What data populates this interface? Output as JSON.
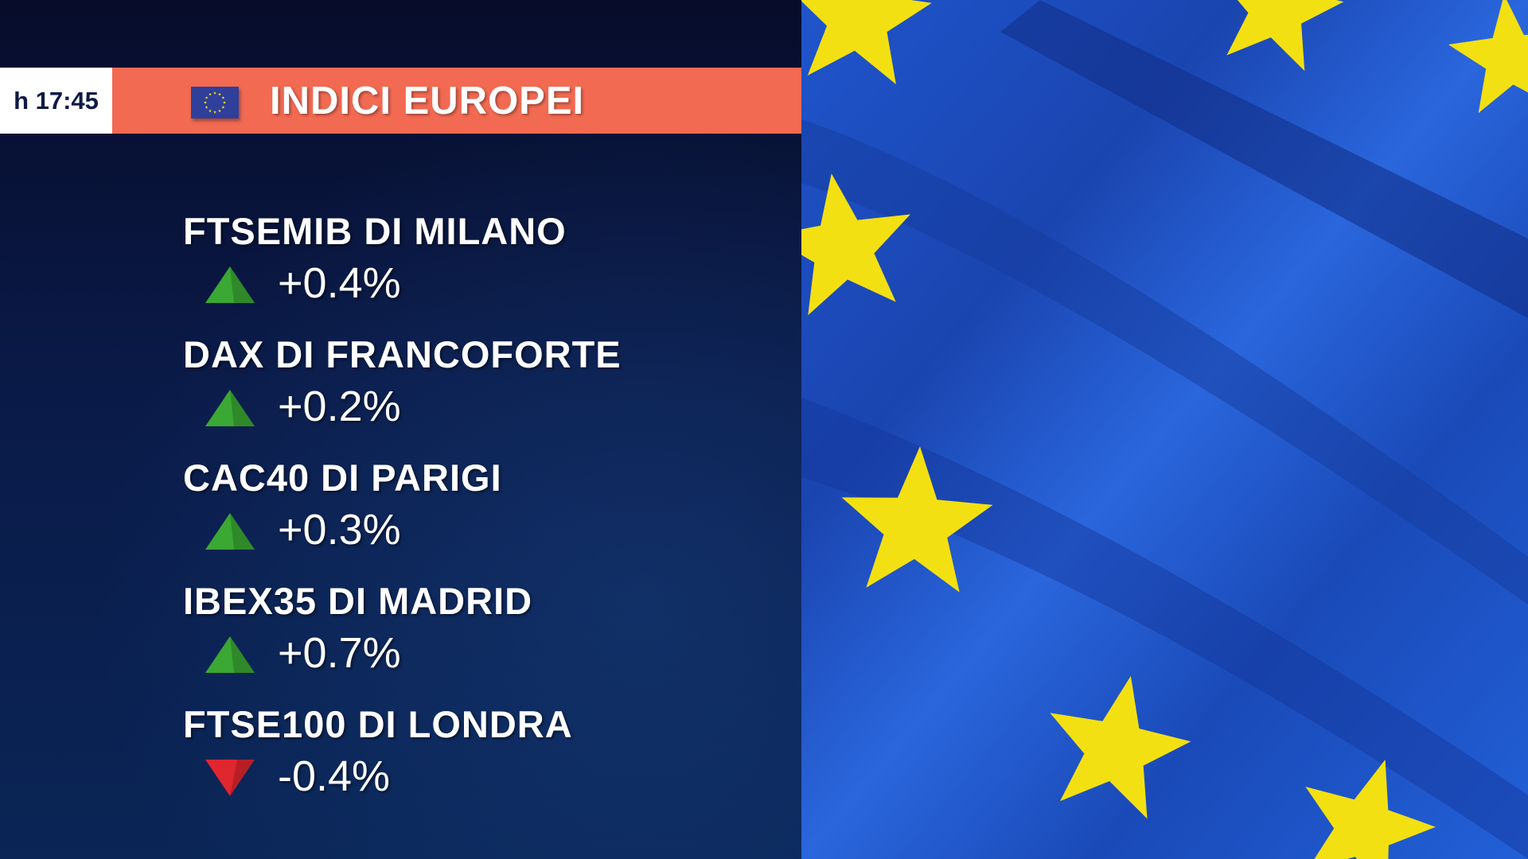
{
  "header": {
    "time": "h 17:45",
    "title": "INDICI EUROPEI",
    "flag_icon": "eu-flag-icon",
    "accent": "#f26a52"
  },
  "indices": [
    {
      "name": "FTSEMIB DI MILANO",
      "change": "+0.4%",
      "direction": "up"
    },
    {
      "name": "DAX DI FRANCOFORTE",
      "change": "+0.2%",
      "direction": "up"
    },
    {
      "name": "CAC40 DI PARIGI",
      "change": "+0.3%",
      "direction": "up"
    },
    {
      "name": "IBEX35 DI MADRID",
      "change": "+0.7%",
      "direction": "up"
    },
    {
      "name": "FTSE100 DI LONDRA",
      "change": "-0.4%",
      "direction": "down"
    }
  ],
  "colors": {
    "up": "#3aa833",
    "down": "#e0262e",
    "flag_blue": "#1d4fc0",
    "star": "#f3e012"
  }
}
